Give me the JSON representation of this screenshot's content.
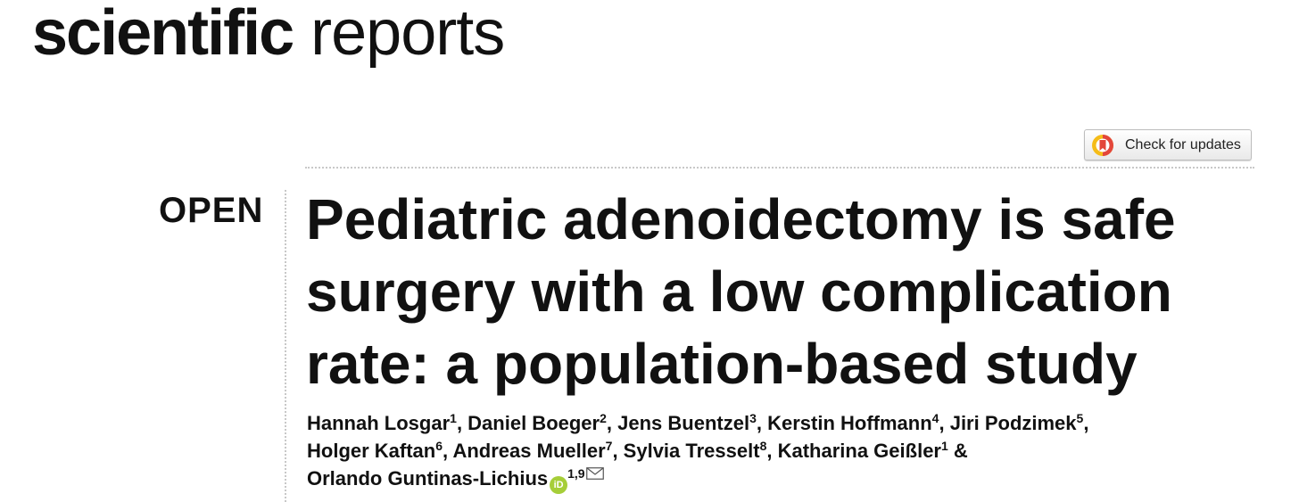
{
  "journal": {
    "name_bold": "scientific",
    "name_light": "reports"
  },
  "check_updates": {
    "label": "Check for updates",
    "icon": "crossmark-icon"
  },
  "access_label": "OPEN",
  "article": {
    "title": "Pediatric adenoidectomy is safe surgery with a low complication rate: a population-based study"
  },
  "authors": [
    {
      "name": "Hannah Losgar",
      "aff": "1"
    },
    {
      "name": "Daniel Boeger",
      "aff": "2"
    },
    {
      "name": "Jens Buentzel",
      "aff": "3"
    },
    {
      "name": "Kerstin Hoffmann",
      "aff": "4"
    },
    {
      "name": "Jiri Podzimek",
      "aff": "5"
    },
    {
      "name": "Holger Kaftan",
      "aff": "6"
    },
    {
      "name": "Andreas Mueller",
      "aff": "7"
    },
    {
      "name": "Sylvia Tresselt",
      "aff": "8"
    },
    {
      "name": "Katharina Geißler",
      "aff": "1"
    },
    {
      "name": "Orlando Guntinas-Lichius",
      "aff": "1,9",
      "orcid": "iD",
      "corresponding": true
    }
  ],
  "separators": {
    "comma": ", ",
    "ampersand": " & "
  },
  "colors": {
    "orcid_green": "#a6ce39",
    "crossmark_red": "#e3463b",
    "crossmark_yellow": "#f5bc18"
  }
}
